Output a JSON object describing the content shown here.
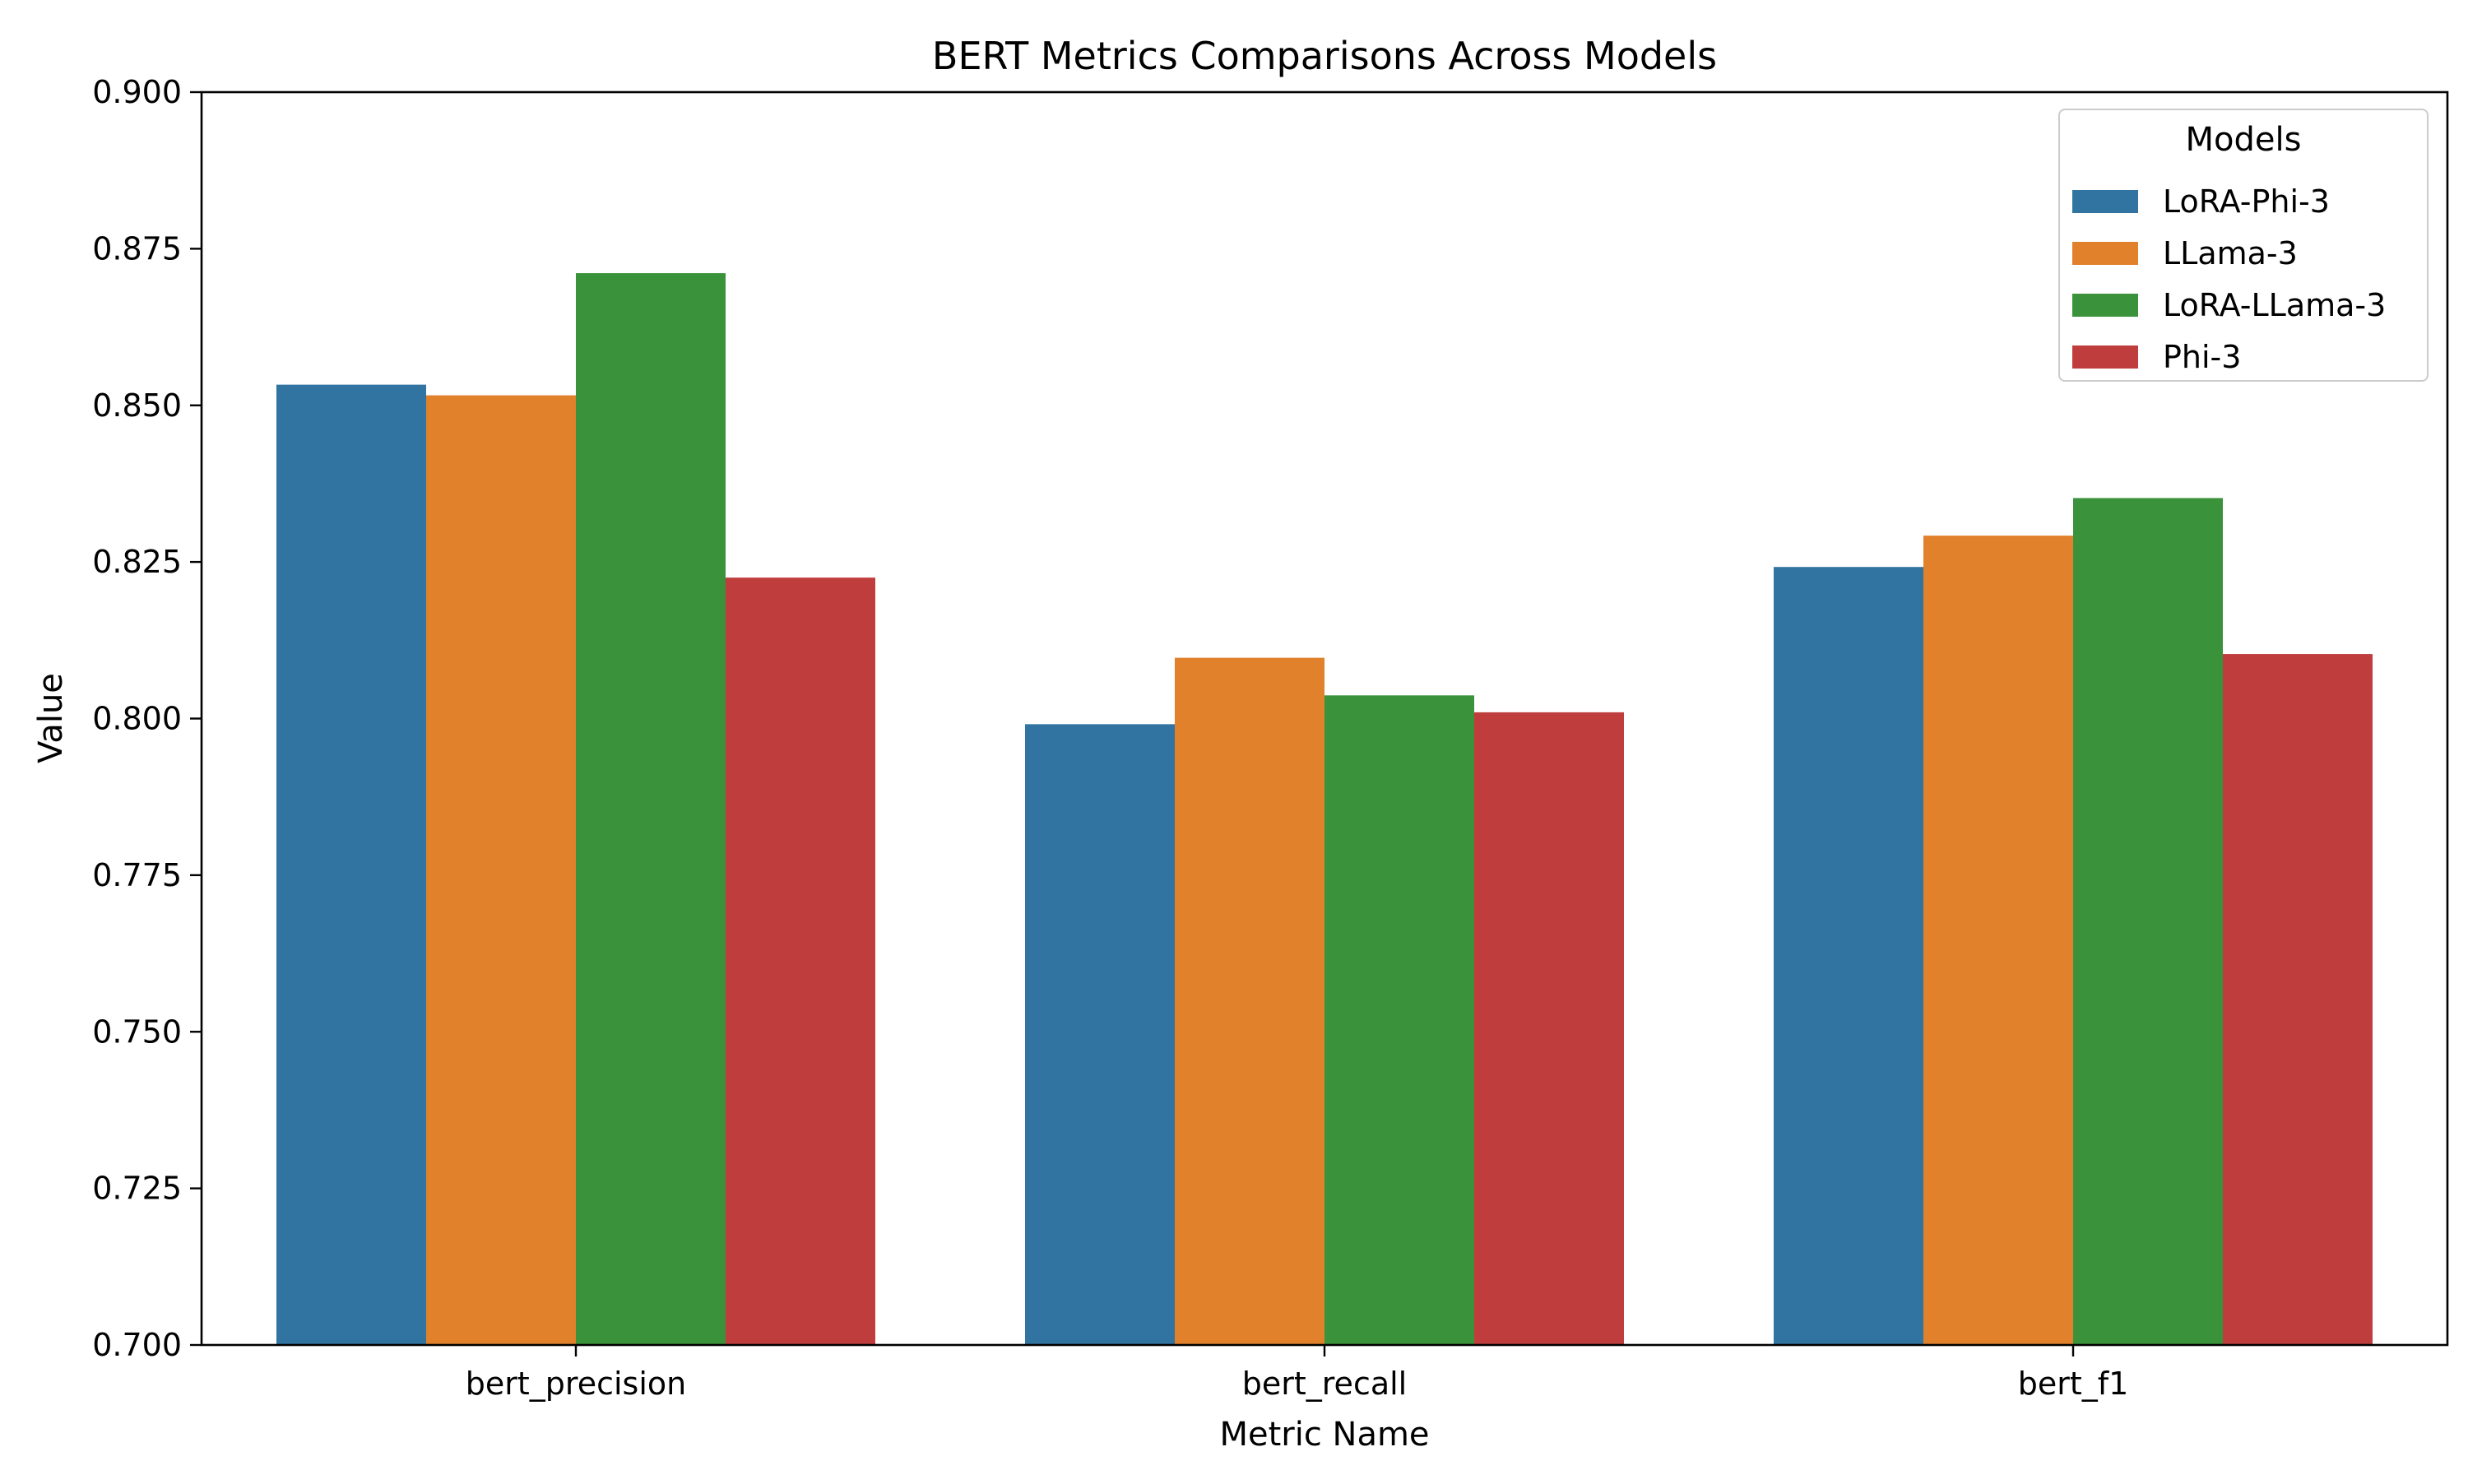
{
  "chart_data": {
    "type": "bar",
    "title": "BERT Metrics Comparisons Across Models",
    "xlabel": "Metric Name",
    "ylabel": "Value",
    "categories": [
      "bert_precision",
      "bert_recall",
      "bert_f1"
    ],
    "ylim": [
      0.7,
      0.9
    ],
    "yticks": [
      "0.700",
      "0.725",
      "0.750",
      "0.775",
      "0.800",
      "0.825",
      "0.850",
      "0.875",
      "0.900"
    ],
    "grid": false,
    "legend": {
      "title": "Models",
      "placement": "top-right"
    },
    "series": [
      {
        "name": "LoRA-Phi-3",
        "color": "#3274a1",
        "values": [
          0.8533,
          0.7991,
          0.8242
        ]
      },
      {
        "name": "LLama-3",
        "color": "#e1812c",
        "values": [
          0.8516,
          0.8097,
          0.8292
        ]
      },
      {
        "name": "LoRA-LLama-3",
        "color": "#3a923a",
        "values": [
          0.8711,
          0.8037,
          0.8352
        ]
      },
      {
        "name": "Phi-3",
        "color": "#c03d3e",
        "values": [
          0.8225,
          0.801,
          0.8103
        ]
      }
    ]
  }
}
